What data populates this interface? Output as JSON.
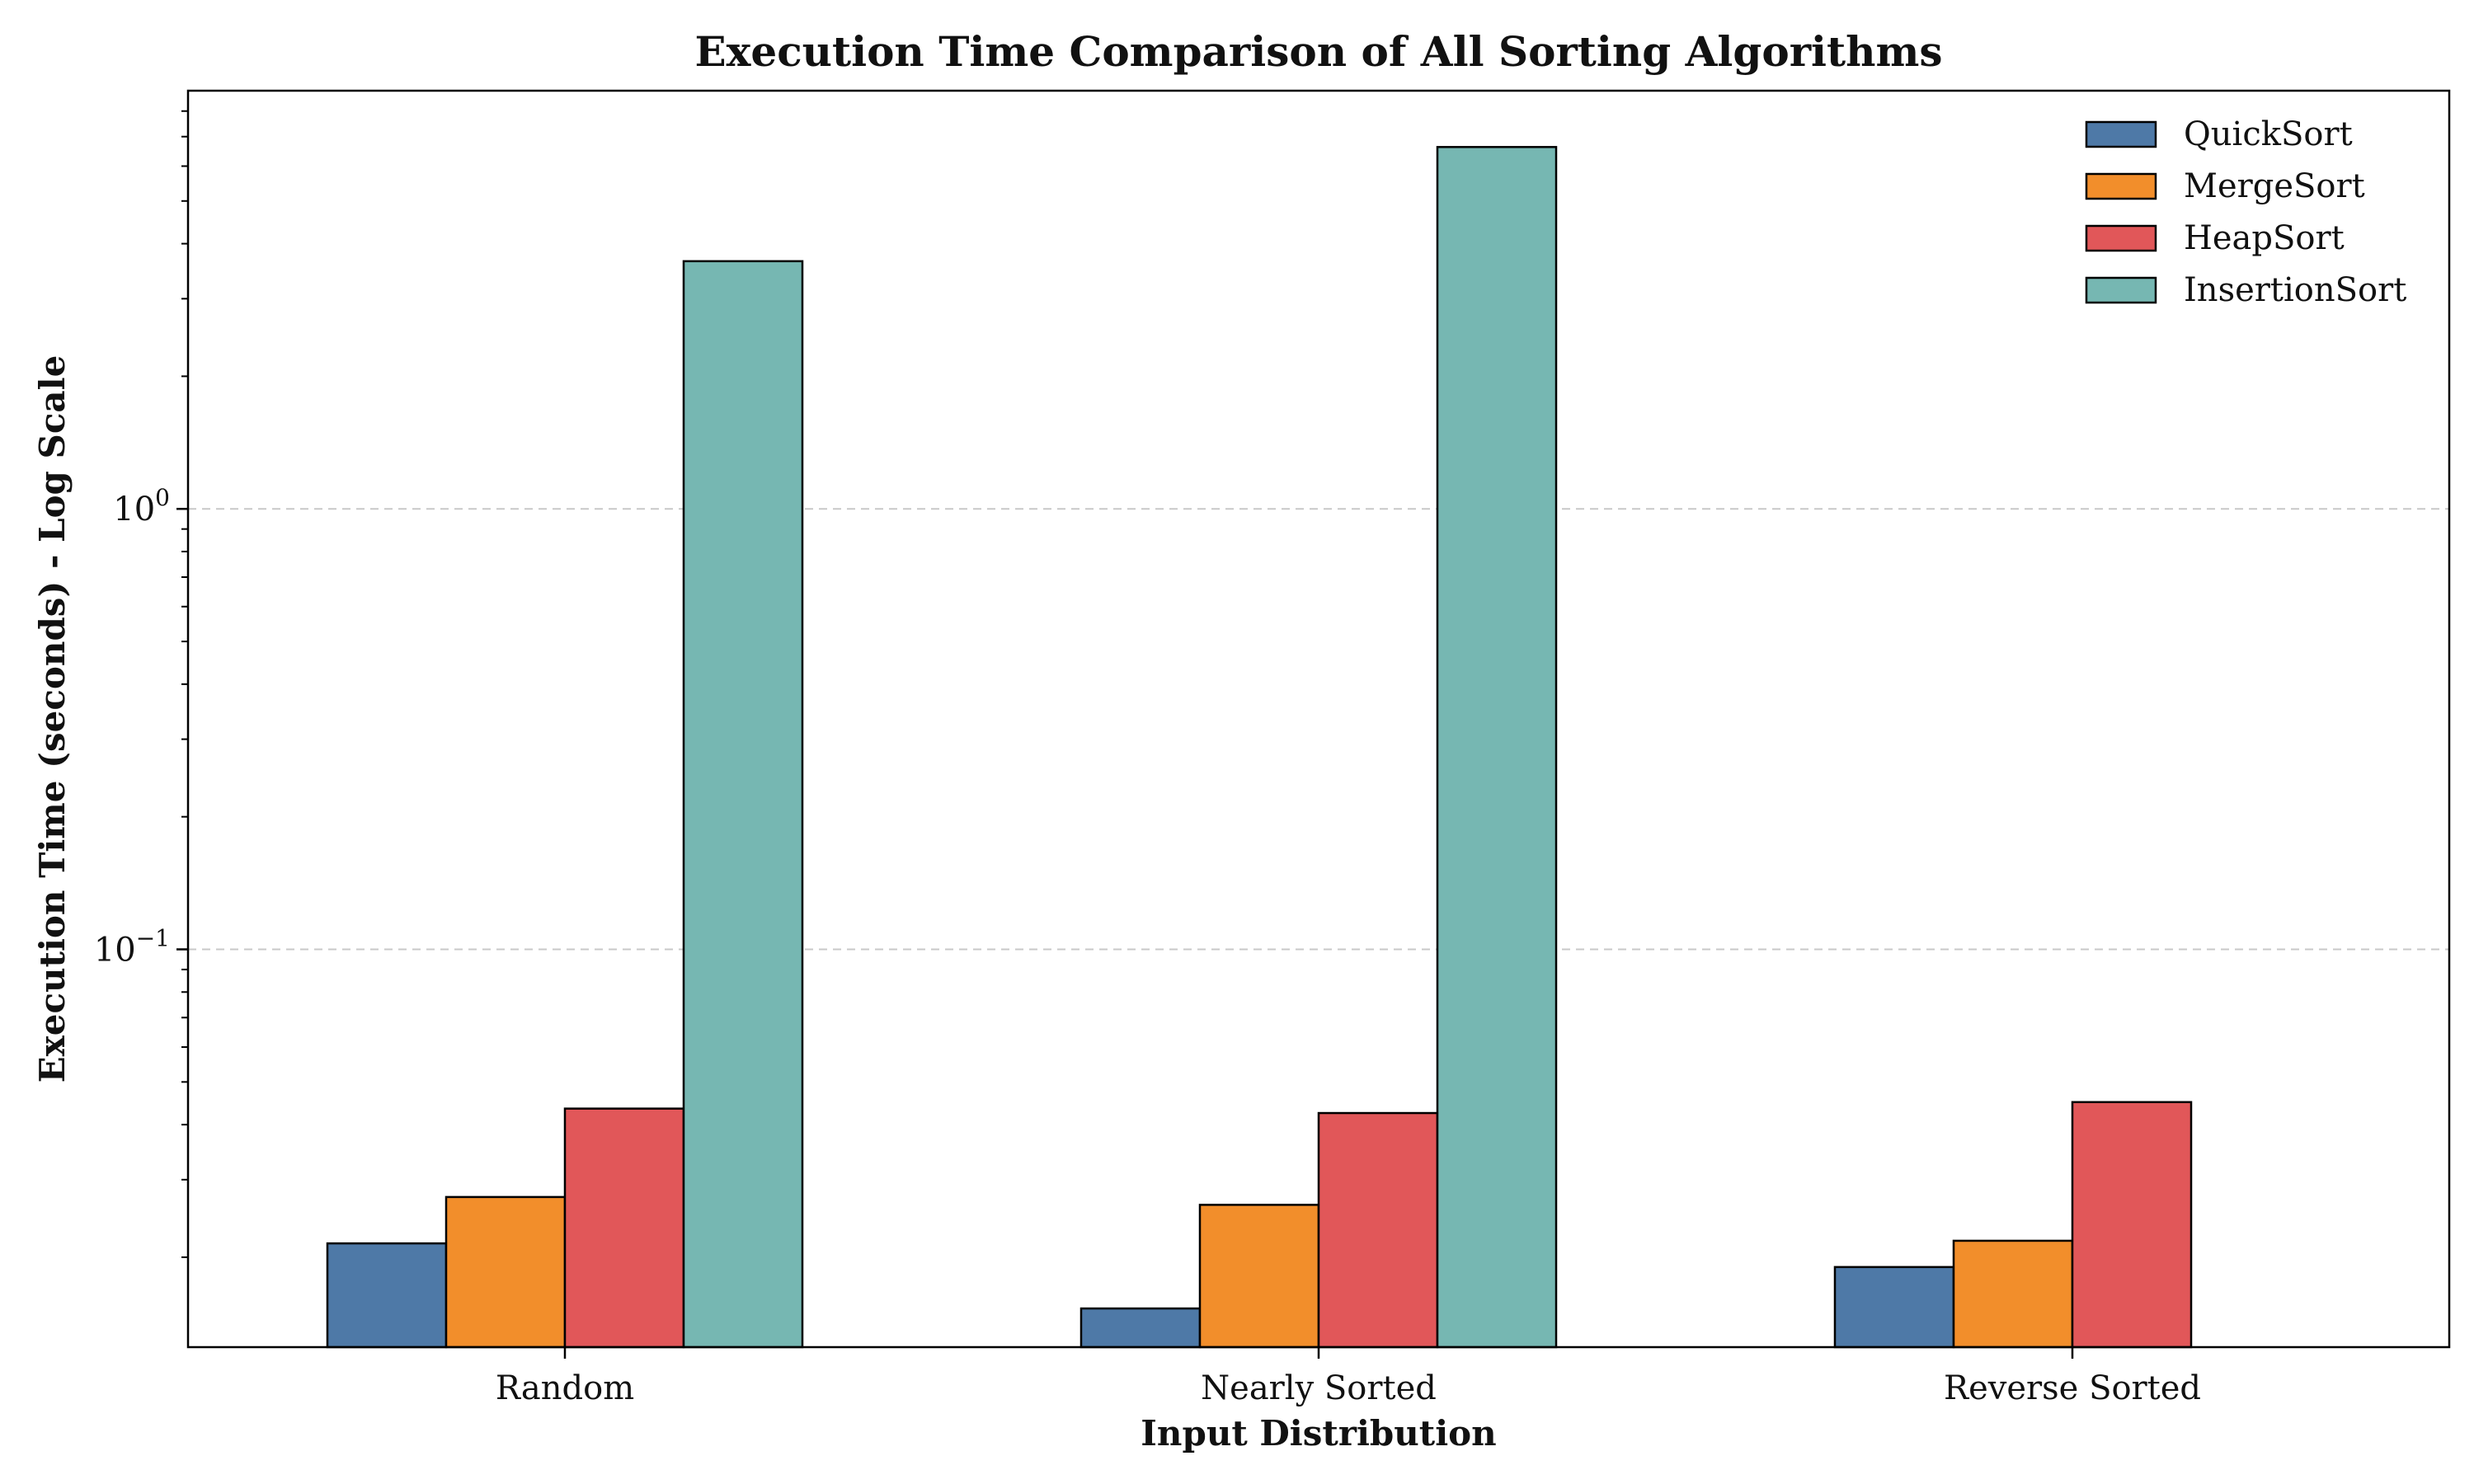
{
  "chart_data": {
    "type": "bar",
    "title": "Execution Time Comparison of All Sorting Algorithms",
    "xlabel": "Input Distribution",
    "ylabel": "Execution Time (seconds) - Log Scale",
    "yscale": "log",
    "ylim": [
      0.0125,
      8.9
    ],
    "ytick_labels": [
      {
        "value": 0.1,
        "base": "10",
        "exp": "−1"
      },
      {
        "value": 1,
        "base": "10",
        "exp": "0"
      }
    ],
    "grid": {
      "axis": "y",
      "major_only": true,
      "style": "dashed"
    },
    "legend": {
      "placement": "top-right"
    },
    "categories": [
      "Random",
      "Nearly Sorted",
      "Reverse Sorted"
    ],
    "series": [
      {
        "name": "QuickSort",
        "color": "#4e79a7",
        "values": [
          0.0215,
          0.0153,
          0.019
        ]
      },
      {
        "name": "MergeSort",
        "color": "#f28e2b",
        "values": [
          0.0274,
          0.0263,
          0.0218
        ]
      },
      {
        "name": "HeapSort",
        "color": "#e15759",
        "values": [
          0.0435,
          0.0425,
          0.045
        ]
      },
      {
        "name": "InsertionSort",
        "color": "#76b7b2",
        "values": [
          3.65,
          6.63,
          null
        ]
      }
    ]
  }
}
